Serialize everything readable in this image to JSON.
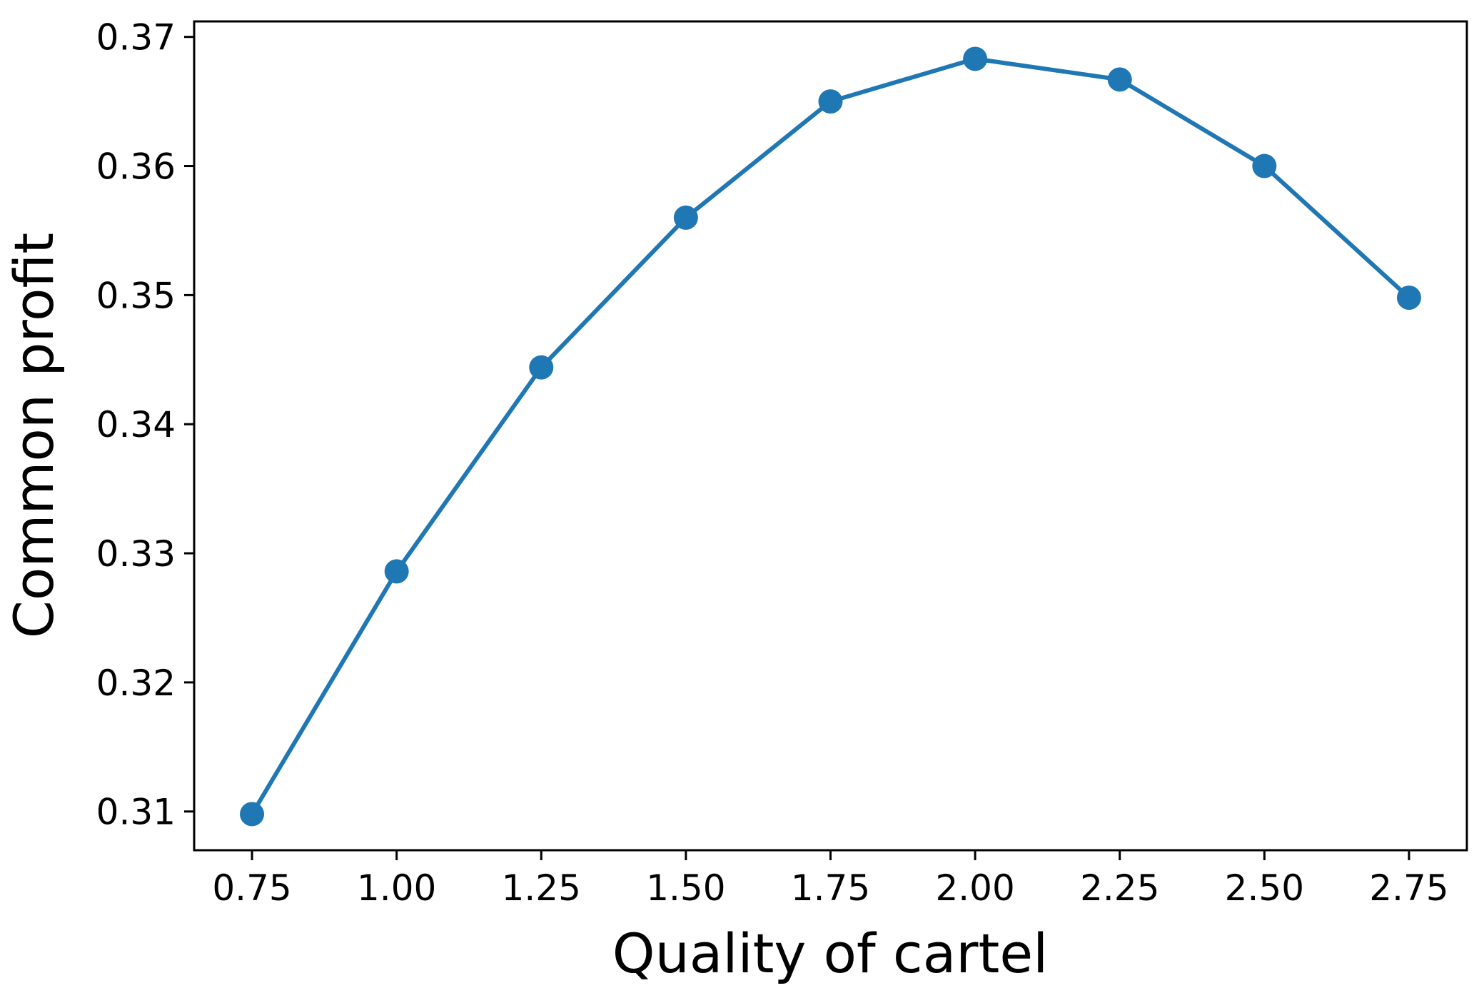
{
  "chart_data": {
    "type": "line",
    "title": "",
    "xlabel": "Quality of cartel",
    "ylabel": "Common profit",
    "xlim": [
      0.65,
      2.85
    ],
    "ylim": [
      0.307,
      0.3712
    ],
    "xticks": [
      "0.75",
      "1.00",
      "1.25",
      "1.50",
      "1.75",
      "2.00",
      "2.25",
      "2.50",
      "2.75"
    ],
    "yticks": [
      "0.31",
      "0.32",
      "0.33",
      "0.34",
      "0.35",
      "0.36",
      "0.37"
    ],
    "grid": false,
    "series": [
      {
        "color": "#1f77b4",
        "marker": "circle",
        "x": [
          0.75,
          1.0,
          1.25,
          1.5,
          1.75,
          2.0,
          2.25,
          2.5,
          2.75
        ],
        "y": [
          0.3098,
          0.3286,
          0.3444,
          0.356,
          0.365,
          0.3683,
          0.3667,
          0.36,
          0.3498
        ]
      }
    ]
  }
}
